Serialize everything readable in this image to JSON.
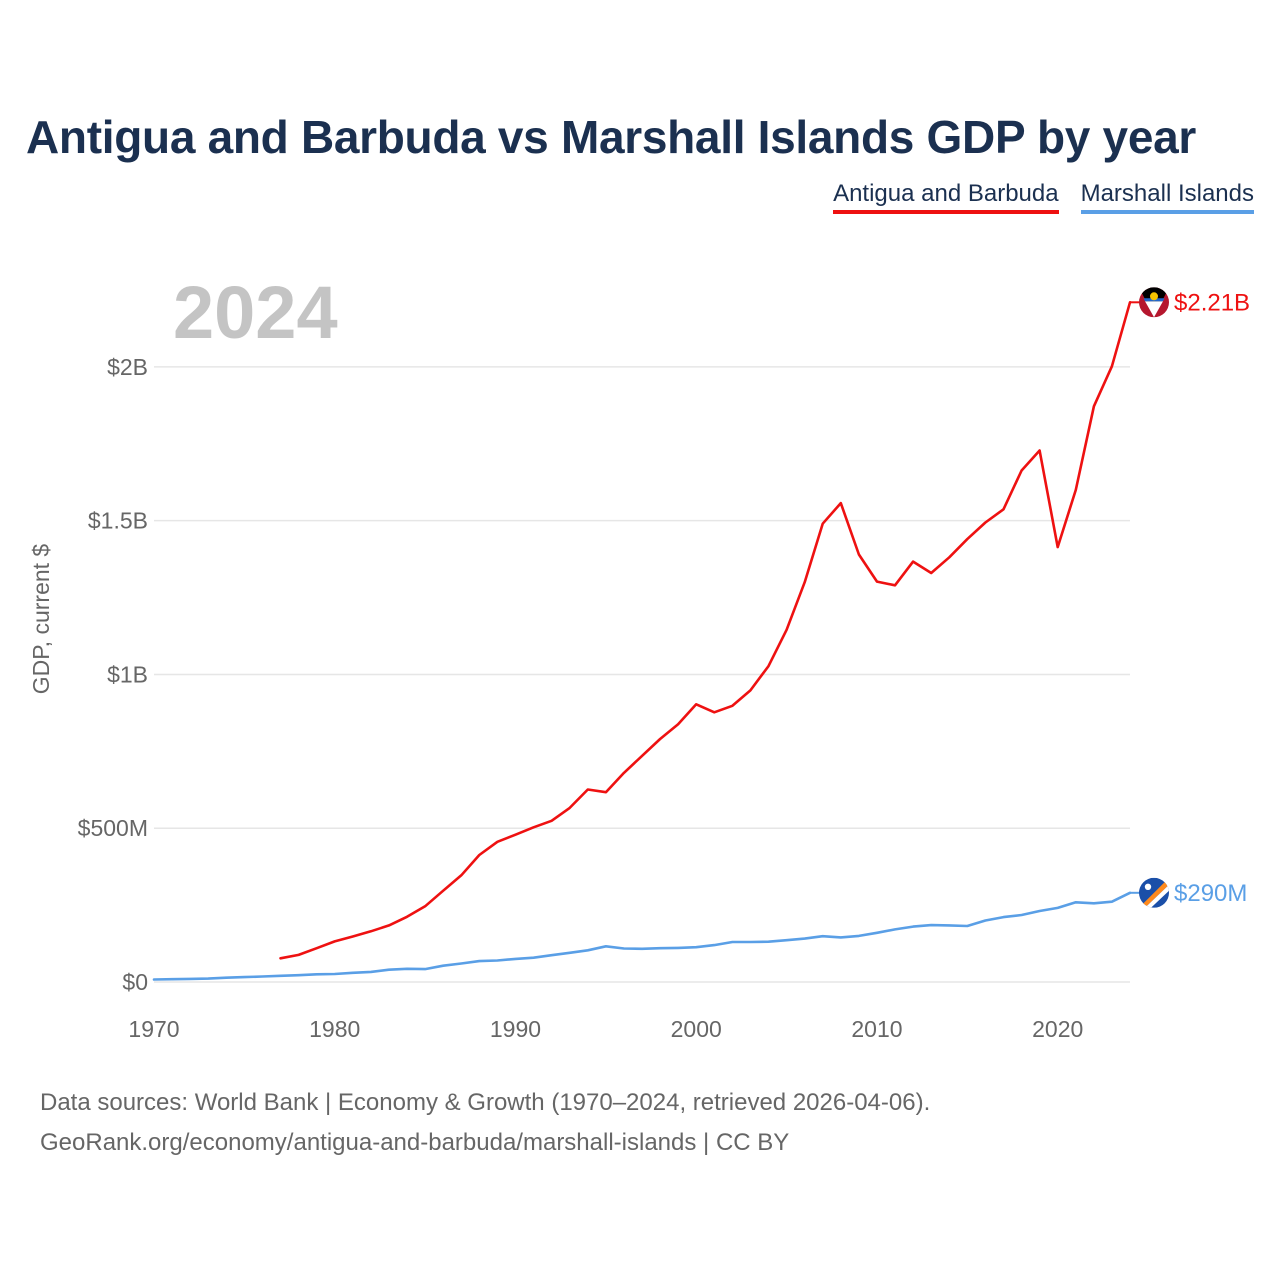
{
  "title": "Antigua and Barbuda vs Marshall Islands GDP by year",
  "chart_data": {
    "type": "line",
    "title": "Antigua and Barbuda vs Marshall Islands GDP by year",
    "year_label": "2024",
    "ylabel": "GDP, current $",
    "xlim": [
      1970,
      2024
    ],
    "ylim": [
      0,
      2250000000
    ],
    "x_ticks": [
      1970,
      1980,
      1990,
      2000,
      2010,
      2020
    ],
    "y_ticks": [
      {
        "value": 0,
        "label": "$0"
      },
      {
        "value": 500000000,
        "label": "$500M"
      },
      {
        "value": 1000000000,
        "label": "$1B"
      },
      {
        "value": 1500000000,
        "label": "$1.5B"
      },
      {
        "value": 2000000000,
        "label": "$2B"
      }
    ],
    "grid": true,
    "legend_position": "top-right",
    "series": [
      {
        "name": "Antigua and Barbuda",
        "color": "#ee1111",
        "end_label": "$2.21B",
        "flag": "antigua-and-barbuda-flag",
        "x": [
          1977,
          1978,
          1979,
          1980,
          1981,
          1982,
          1983,
          1984,
          1985,
          1986,
          1987,
          1988,
          1989,
          1990,
          1991,
          1992,
          1993,
          1994,
          1995,
          1996,
          1997,
          1998,
          1999,
          2000,
          2001,
          2002,
          2003,
          2004,
          2005,
          2006,
          2007,
          2008,
          2009,
          2010,
          2011,
          2012,
          2013,
          2014,
          2015,
          2016,
          2017,
          2018,
          2019,
          2020,
          2021,
          2022,
          2023,
          2024
        ],
        "values": [
          77000000,
          88000000,
          110000000,
          132000000,
          148000000,
          165000000,
          184000000,
          212000000,
          246000000,
          297000000,
          347000000,
          413000000,
          456000000,
          479000000,
          503000000,
          524000000,
          566000000,
          626000000,
          617000000,
          680000000,
          735000000,
          790000000,
          838000000,
          903000000,
          877000000,
          898000000,
          948000000,
          1027000000,
          1145000000,
          1300000000,
          1490000000,
          1557000000,
          1390000000,
          1302000000,
          1290000000,
          1367000000,
          1330000000,
          1381000000,
          1440000000,
          1494000000,
          1537000000,
          1663000000,
          1728000000,
          1414000000,
          1600000000,
          1872000000,
          2002000000,
          2210000000
        ]
      },
      {
        "name": "Marshall Islands",
        "color": "#5a9fe6",
        "end_label": "$290M",
        "flag": "marshall-islands-flag",
        "x": [
          1970,
          1971,
          1972,
          1973,
          1974,
          1975,
          1976,
          1977,
          1978,
          1979,
          1980,
          1981,
          1982,
          1983,
          1984,
          1985,
          1986,
          1987,
          1988,
          1989,
          1990,
          1991,
          1992,
          1993,
          1994,
          1995,
          1996,
          1997,
          1998,
          1999,
          2000,
          2001,
          2002,
          2003,
          2004,
          2005,
          2006,
          2007,
          2008,
          2009,
          2010,
          2011,
          2012,
          2013,
          2014,
          2015,
          2016,
          2017,
          2018,
          2019,
          2020,
          2021,
          2022,
          2023,
          2024
        ],
        "values": [
          8000000,
          9000000,
          10000000,
          11000000,
          14000000,
          16000000,
          18000000,
          20000000,
          22000000,
          25000000,
          26000000,
          30000000,
          33000000,
          40000000,
          43000000,
          42000000,
          53000000,
          60000000,
          68000000,
          70000000,
          75000000,
          79000000,
          87000000,
          95000000,
          103000000,
          116000000,
          109000000,
          108000000,
          110000000,
          111000000,
          113000000,
          120000000,
          130000000,
          130000000,
          131000000,
          136000000,
          141000000,
          149000000,
          145000000,
          150000000,
          160000000,
          171000000,
          180000000,
          185000000,
          184000000,
          182000000,
          200000000,
          211000000,
          218000000,
          231000000,
          241000000,
          259000000,
          256000000,
          261000000,
          290000000
        ]
      }
    ]
  },
  "source": {
    "line1": "Data sources: World Bank | Economy & Growth (1970–2024, retrieved 2026-04-06).",
    "line2": "GeoRank.org/economy/antigua-and-barbuda/marshall-islands | CC BY"
  }
}
